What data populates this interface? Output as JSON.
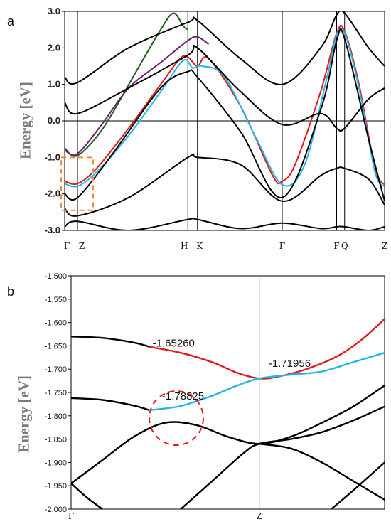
{
  "panel_a": {
    "letter": "a",
    "ylabel": "Energy [eV]"
  },
  "panel_b": {
    "letter": "b",
    "ylabel": "Energy [eV]"
  },
  "colors": {
    "black": "#000000",
    "red": "#e01b1b",
    "cyan": "#27b4e8",
    "green": "#1e5c1e",
    "purple": "#6b1f6b",
    "orange_box": "#f08a3c",
    "red_circle": "#e01b1b"
  },
  "chart_data": [
    {
      "type": "line",
      "panel": "a",
      "xlabel": "",
      "ylabel": "Energy [eV]",
      "ylim": [
        -3.0,
        3.0
      ],
      "yticks": [
        "3.0",
        "2.0",
        "1.0",
        "0.0",
        "-1.0",
        "-2.0",
        "-3.0"
      ],
      "ytick_values": [
        3.0,
        2.0,
        1.0,
        0.0,
        -1.0,
        -2.0,
        -3.0
      ],
      "kpath": [
        "Γ",
        "Z",
        "H",
        "K",
        "Γ",
        "F",
        "Q",
        "Z"
      ],
      "kpath_positions": [
        0.0,
        0.04,
        0.385,
        0.415,
        0.68,
        0.85,
        0.875,
        1.0
      ],
      "xlim": [
        0,
        1
      ],
      "grid": false,
      "hline_at": 0.0,
      "series": [
        {
          "color": "red",
          "x": [
            0.0,
            0.04,
            0.1,
            0.2,
            0.3,
            0.36,
            0.385,
            0.415,
            0.45,
            0.55,
            0.65,
            0.68,
            0.72,
            0.8,
            0.85,
            0.875,
            0.92,
            0.97,
            1.0
          ],
          "values": [
            -1.65,
            -1.72,
            -1.3,
            -0.2,
            1.0,
            1.7,
            1.75,
            1.5,
            1.7,
            0.4,
            -1.5,
            -1.65,
            -1.2,
            0.8,
            2.4,
            2.45,
            1.0,
            -1.3,
            -1.75
          ]
        },
        {
          "color": "cyan",
          "x": [
            0.0,
            0.04,
            0.1,
            0.2,
            0.3,
            0.37,
            0.4,
            0.43,
            0.5,
            0.6,
            0.68,
            0.75,
            0.82,
            0.85,
            0.875,
            0.92,
            0.97,
            1.0
          ],
          "values": [
            -1.72,
            -1.79,
            -1.4,
            -0.4,
            0.8,
            1.65,
            1.45,
            1.5,
            1.2,
            -0.5,
            -1.75,
            -1.2,
            1.2,
            2.35,
            2.4,
            0.9,
            -1.4,
            -1.8
          ]
        },
        {
          "color": "green",
          "x": [
            0.0,
            0.04,
            0.12,
            0.22,
            0.3,
            0.34,
            0.37,
            0.385
          ],
          "values": [
            -0.75,
            -0.95,
            -0.2,
            1.3,
            2.5,
            2.95,
            2.6,
            2.5
          ]
        },
        {
          "color": "purple",
          "x": [
            0.0,
            0.04,
            0.12,
            0.2,
            0.3,
            0.385,
            0.415,
            0.45
          ],
          "values": [
            -0.8,
            -0.9,
            -0.05,
            0.9,
            1.6,
            2.2,
            2.3,
            2.1
          ]
        },
        {
          "color": "black",
          "x": [
            0.0,
            0.04,
            0.15,
            0.3,
            0.385,
            0.415,
            0.55,
            0.68,
            0.8,
            0.85,
            0.875,
            0.95,
            1.0
          ],
          "values": [
            -2.0,
            -2.1,
            -0.9,
            0.9,
            1.35,
            1.2,
            -0.3,
            -2.1,
            0.3,
            2.2,
            2.25,
            -0.5,
            -2.2
          ]
        },
        {
          "color": "black",
          "x": [
            0.0,
            0.04,
            0.2,
            0.385,
            0.415,
            0.55,
            0.68,
            0.8,
            0.85,
            0.875,
            0.95,
            1.0
          ],
          "values": [
            1.2,
            1.05,
            2.0,
            2.7,
            2.75,
            1.7,
            1.0,
            2.0,
            2.9,
            2.95,
            2.0,
            1.5
          ]
        },
        {
          "color": "black",
          "x": [
            0.0,
            0.04,
            0.2,
            0.385,
            0.415,
            0.55,
            0.68,
            0.8,
            0.85,
            0.875,
            0.95,
            1.0
          ],
          "values": [
            0.5,
            0.2,
            0.9,
            1.8,
            2.0,
            0.8,
            -0.1,
            0.2,
            -0.2,
            -0.2,
            0.6,
            0.9
          ]
        },
        {
          "color": "black",
          "x": [
            0.0,
            0.04,
            0.2,
            0.385,
            0.415,
            0.55,
            0.68,
            0.8,
            0.85,
            0.875,
            0.95,
            1.0
          ],
          "values": [
            -2.4,
            -2.6,
            -2.1,
            -1.0,
            -1.0,
            -1.2,
            -2.2,
            -1.5,
            -1.3,
            -1.3,
            -1.6,
            -2.3
          ]
        },
        {
          "color": "black",
          "x": [
            0.0,
            0.04,
            0.2,
            0.385,
            0.415,
            0.55,
            0.68,
            0.8,
            0.85,
            0.875,
            0.95,
            1.0
          ],
          "values": [
            -2.9,
            -2.75,
            -3.0,
            -2.7,
            -2.7,
            -2.95,
            -2.8,
            -2.95,
            -2.9,
            -2.9,
            -3.0,
            -2.9
          ]
        }
      ]
    },
    {
      "type": "line",
      "panel": "b",
      "xlabel": "",
      "ylabel": "Energy [eV]",
      "ylim": [
        -2.0,
        -1.5
      ],
      "yticks": [
        "-1.500",
        "-1.550",
        "-1.600",
        "-1.650",
        "-1.700",
        "-1.750",
        "-1.800",
        "-1.850",
        "-1.900",
        "-1.950",
        "-2.000"
      ],
      "ytick_values": [
        -1.5,
        -1.55,
        -1.6,
        -1.65,
        -1.7,
        -1.75,
        -1.8,
        -1.85,
        -1.9,
        -1.95,
        -2.0
      ],
      "kpath": [
        "Γ",
        "Z"
      ],
      "kpath_positions": [
        0.0,
        0.6
      ],
      "xlim": [
        0,
        1
      ],
      "grid": false,
      "annotations": [
        {
          "text": "-1.65260",
          "x": 0.26,
          "y": -1.652
        },
        {
          "text": "-1.71956",
          "x": 0.63,
          "y": -1.695
        },
        {
          "text": "-1.78825",
          "x": 0.29,
          "y": -1.765
        }
      ],
      "series": [
        {
          "color": "black",
          "x": [
            0.0,
            0.1,
            0.2,
            0.25
          ],
          "values": [
            -1.63,
            -1.633,
            -1.643,
            -1.652
          ]
        },
        {
          "color": "red",
          "x": [
            0.25,
            0.35,
            0.45,
            0.53,
            0.6,
            0.66,
            0.75,
            0.85,
            0.93,
            1.0
          ],
          "values": [
            -1.652,
            -1.665,
            -1.685,
            -1.708,
            -1.72,
            -1.716,
            -1.7,
            -1.672,
            -1.635,
            -1.592
          ]
        },
        {
          "color": "black",
          "x": [
            0.0,
            0.1,
            0.2,
            0.25
          ],
          "values": [
            -1.762,
            -1.766,
            -1.778,
            -1.788
          ]
        },
        {
          "color": "cyan",
          "x": [
            0.25,
            0.35,
            0.45,
            0.53,
            0.6,
            0.7,
            0.8,
            0.9,
            1.0
          ],
          "values": [
            -1.788,
            -1.779,
            -1.757,
            -1.735,
            -1.72,
            -1.712,
            -1.705,
            -1.685,
            -1.665
          ]
        },
        {
          "color": "black",
          "x": [
            0.0,
            0.1,
            0.2,
            0.3,
            0.4,
            0.5,
            0.6,
            0.7,
            0.8,
            0.9,
            1.0
          ],
          "values": [
            -1.945,
            -1.895,
            -1.845,
            -1.815,
            -1.82,
            -1.845,
            -1.86,
            -1.845,
            -1.815,
            -1.78,
            -1.735
          ]
        },
        {
          "color": "black",
          "x": [
            0.0,
            0.05,
            0.1
          ],
          "values": [
            -1.945,
            -1.975,
            -2.0
          ]
        },
        {
          "color": "black",
          "x": [
            0.35,
            0.45,
            0.55,
            0.6,
            0.7,
            0.8,
            0.9,
            1.0
          ],
          "values": [
            -2.0,
            -1.94,
            -1.88,
            -1.86,
            -1.85,
            -1.835,
            -1.81,
            -1.78
          ]
        },
        {
          "color": "black",
          "x": [
            0.6,
            0.7,
            0.8,
            0.9,
            1.0
          ],
          "values": [
            -1.86,
            -1.87,
            -1.9,
            -1.94,
            -1.98
          ]
        },
        {
          "color": "black",
          "x": [
            0.83,
            0.9,
            0.95,
            1.0
          ],
          "values": [
            -2.0,
            -1.96,
            -1.93,
            -1.9
          ]
        }
      ]
    }
  ]
}
